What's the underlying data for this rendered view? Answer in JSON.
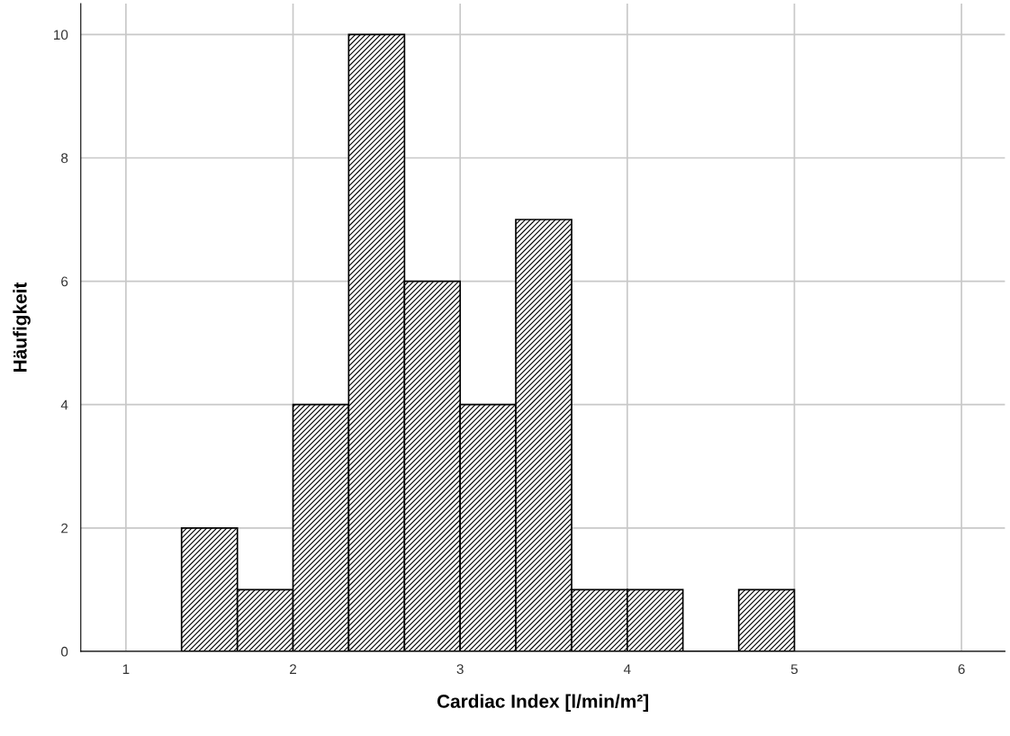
{
  "chart_data": {
    "type": "histogram",
    "xlabel": "Cardiac Index [l/min/m²]",
    "ylabel": "Häufigkeit",
    "bins": [
      1.333,
      1.667,
      2.0,
      2.333,
      2.667,
      3.0,
      3.333,
      3.667,
      4.0,
      4.333,
      4.667,
      5.0
    ],
    "values": [
      2,
      1,
      4,
      10,
      6,
      4,
      7,
      1,
      1,
      0,
      1
    ],
    "color": "#000000",
    "xlim": [
      0.73,
      6.26
    ],
    "xticks": [
      1,
      2,
      3,
      4,
      5,
      6
    ],
    "ylim": [
      0,
      10.5
    ],
    "yticks": [
      0,
      2,
      4,
      6,
      8,
      10
    ],
    "grid": true
  }
}
